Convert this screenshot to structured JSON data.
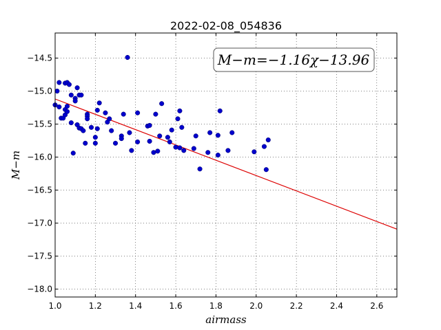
{
  "chart_data": {
    "type": "scatter",
    "title": "2022-02-08_054836",
    "xlabel": "airmass",
    "ylabel": "M−m",
    "xlim": [
      1.0,
      2.7
    ],
    "ylim": [
      -18.12,
      -14.12
    ],
    "y_inverted_display": true,
    "grid": true,
    "grid_style": "dotted",
    "x_ticks": [
      "1.0",
      "1.2",
      "1.4",
      "1.6",
      "1.8",
      "2.0",
      "2.2",
      "2.4",
      "2.6"
    ],
    "y_ticks": [
      "−14.5",
      "−15.0",
      "−15.5",
      "−16.0",
      "−16.5",
      "−17.0",
      "−17.5",
      "−18.0"
    ],
    "annotation": "M−m=−1.16χ−13.96",
    "fit": {
      "slope": -1.16,
      "intercept": -13.96,
      "x_range": [
        1.0,
        2.7
      ]
    },
    "colors": {
      "points": "#0000cc",
      "fit": "#dd0000"
    },
    "points": [
      [
        1.0,
        -15.21
      ],
      [
        1.01,
        -15.0
      ],
      [
        1.02,
        -14.87
      ],
      [
        1.02,
        -15.24
      ],
      [
        1.03,
        -15.41
      ],
      [
        1.04,
        -15.41
      ],
      [
        1.05,
        -14.88
      ],
      [
        1.05,
        -15.28
      ],
      [
        1.05,
        -15.36
      ],
      [
        1.06,
        -15.23
      ],
      [
        1.06,
        -15.31
      ],
      [
        1.06,
        -14.87
      ],
      [
        1.07,
        -14.9
      ],
      [
        1.08,
        -15.06
      ],
      [
        1.08,
        -15.48
      ],
      [
        1.09,
        -15.94
      ],
      [
        1.1,
        -15.11
      ],
      [
        1.1,
        -15.15
      ],
      [
        1.11,
        -14.95
      ],
      [
        1.11,
        -15.51
      ],
      [
        1.12,
        -15.06
      ],
      [
        1.12,
        -15.56
      ],
      [
        1.13,
        -15.06
      ],
      [
        1.13,
        -15.57
      ],
      [
        1.14,
        -15.6
      ],
      [
        1.15,
        -15.79
      ],
      [
        1.16,
        -15.35
      ],
      [
        1.16,
        -15.38
      ],
      [
        1.16,
        -15.42
      ],
      [
        1.18,
        -15.55
      ],
      [
        1.2,
        -15.7
      ],
      [
        1.2,
        -15.79
      ],
      [
        1.21,
        -15.29
      ],
      [
        1.21,
        -15.57
      ],
      [
        1.22,
        -15.18
      ],
      [
        1.25,
        -15.33
      ],
      [
        1.26,
        -15.47
      ],
      [
        1.27,
        -15.42
      ],
      [
        1.28,
        -15.6
      ],
      [
        1.3,
        -15.79
      ],
      [
        1.33,
        -15.68
      ],
      [
        1.33,
        -15.72
      ],
      [
        1.34,
        -15.35
      ],
      [
        1.36,
        -14.49
      ],
      [
        1.37,
        -15.63
      ],
      [
        1.38,
        -15.9
      ],
      [
        1.41,
        -15.33
      ],
      [
        1.41,
        -15.77
      ],
      [
        1.46,
        -15.53
      ],
      [
        1.47,
        -15.52
      ],
      [
        1.47,
        -15.76
      ],
      [
        1.49,
        -15.93
      ],
      [
        1.5,
        -15.35
      ],
      [
        1.51,
        -15.91
      ],
      [
        1.52,
        -15.68
      ],
      [
        1.53,
        -15.19
      ],
      [
        1.56,
        -15.7
      ],
      [
        1.57,
        -15.77
      ],
      [
        1.58,
        -15.59
      ],
      [
        1.6,
        -15.85
      ],
      [
        1.61,
        -15.42
      ],
      [
        1.62,
        -15.86
      ],
      [
        1.62,
        -15.3
      ],
      [
        1.63,
        -15.55
      ],
      [
        1.64,
        -15.9
      ],
      [
        1.69,
        -15.87
      ],
      [
        1.7,
        -15.68
      ],
      [
        1.72,
        -16.18
      ],
      [
        1.76,
        -15.93
      ],
      [
        1.77,
        -15.63
      ],
      [
        1.81,
        -15.97
      ],
      [
        1.81,
        -15.67
      ],
      [
        1.82,
        -15.3
      ],
      [
        1.86,
        -15.9
      ],
      [
        1.88,
        -15.63
      ],
      [
        1.99,
        -15.92
      ],
      [
        2.04,
        -15.84
      ],
      [
        2.05,
        -16.19
      ],
      [
        2.06,
        -15.74
      ]
    ]
  }
}
